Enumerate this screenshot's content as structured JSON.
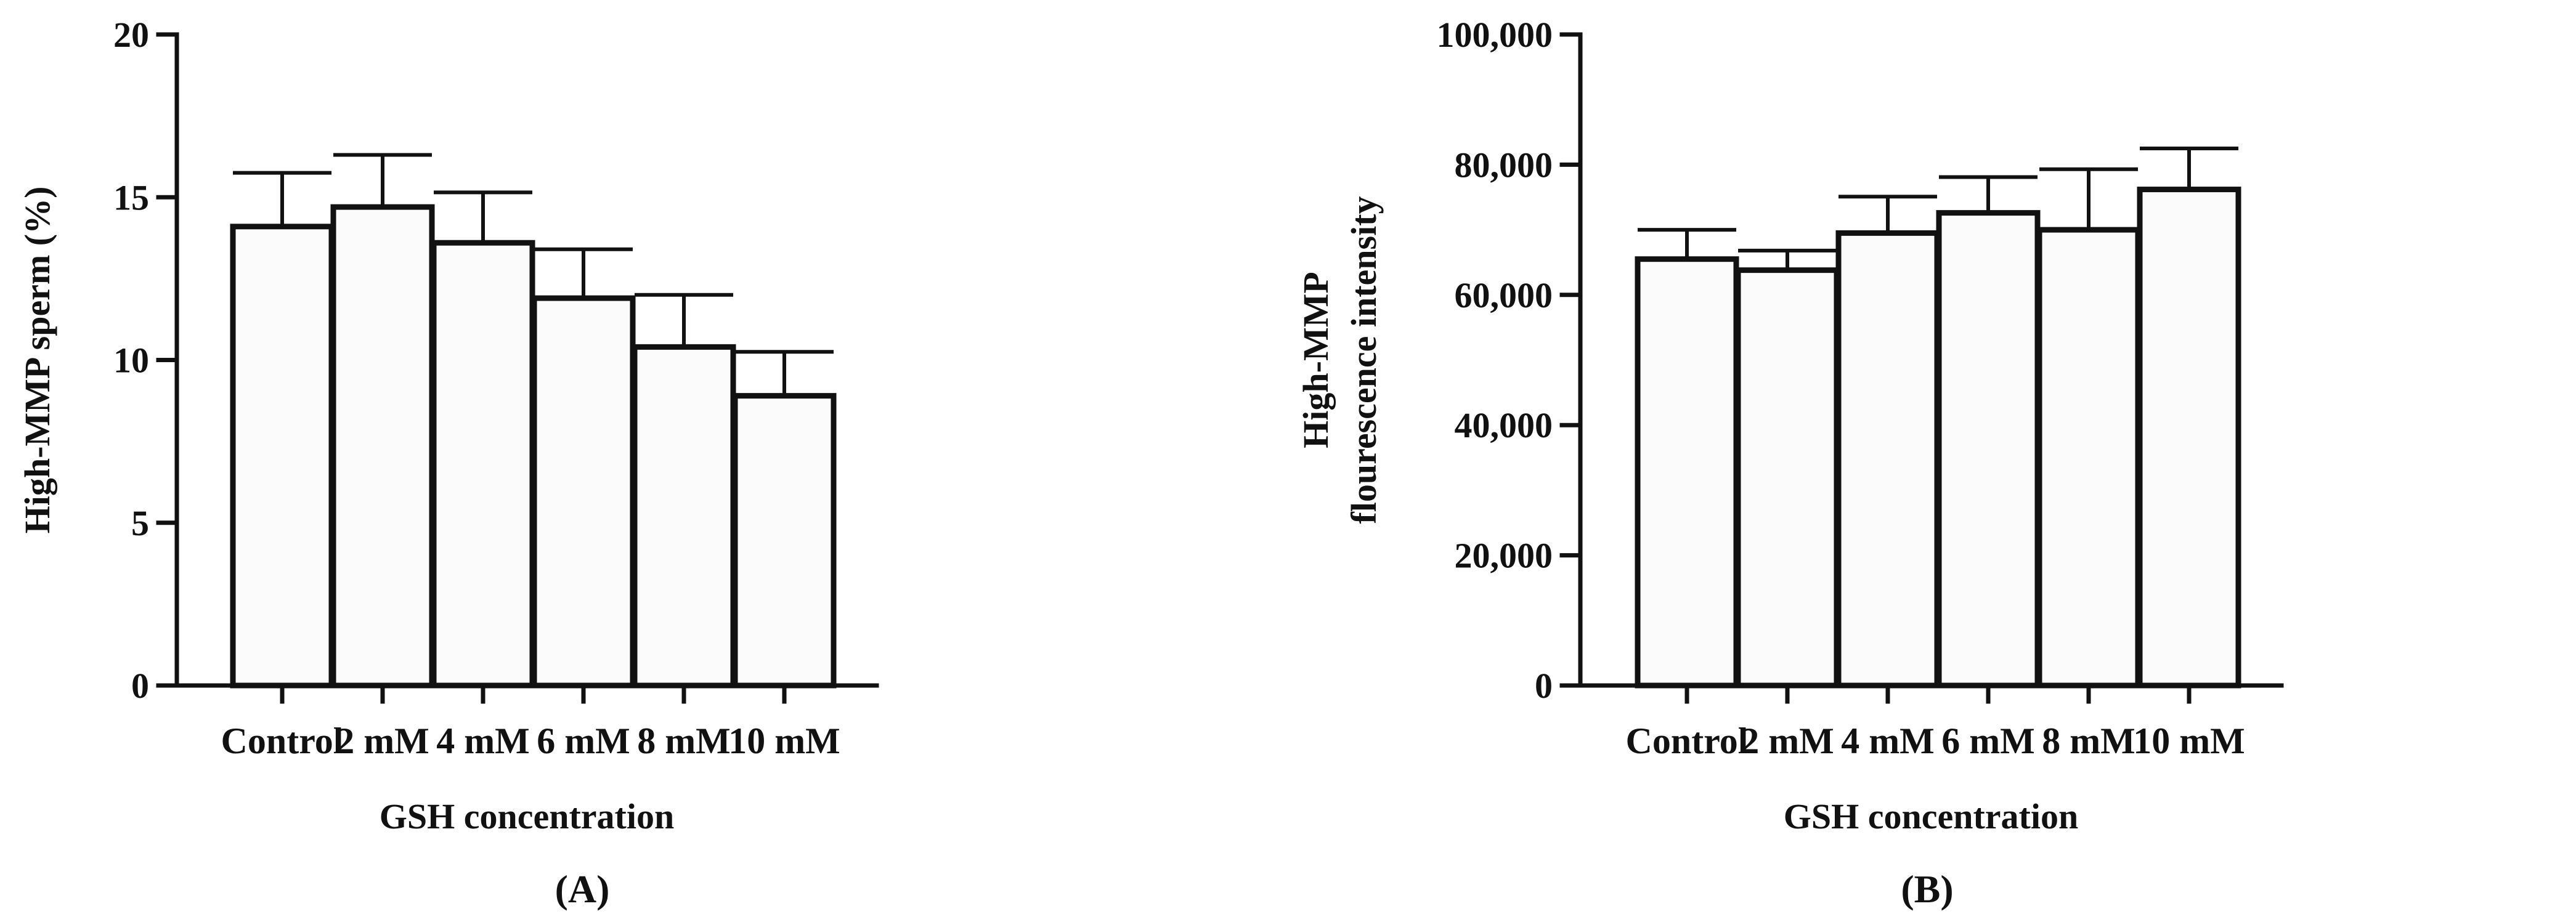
{
  "chart_data": [
    {
      "type": "bar",
      "panel_label": "(A)",
      "categories": [
        "Control",
        "2 mM",
        "4 mM",
        "6 mM",
        "8 mM",
        "10 mM"
      ],
      "values": [
        14.1,
        14.7,
        13.6,
        11.9,
        10.4,
        8.9
      ],
      "error": [
        1.65,
        1.6,
        1.55,
        1.5,
        1.6,
        1.35
      ],
      "xlabel": "GSH concentration",
      "ylabel": [
        "High-MMP sperm (%)"
      ],
      "ylim": [
        0,
        20
      ],
      "yticks": [
        0,
        5,
        10,
        15,
        20
      ],
      "ytick_labels": [
        "0",
        "5",
        "10",
        "15",
        "20"
      ]
    },
    {
      "type": "bar",
      "panel_label": "(B)",
      "categories": [
        "Control",
        "2 mM",
        "4 mM",
        "6 mM",
        "8 mM",
        "10 mM"
      ],
      "values": [
        65500,
        63800,
        69500,
        72600,
        70000,
        76200
      ],
      "error": [
        4500,
        3000,
        5600,
        5500,
        9300,
        6300
      ],
      "xlabel": "GSH concentration",
      "ylabel": [
        "High-MMP",
        "flourescence intensity"
      ],
      "ylim": [
        0,
        100000
      ],
      "yticks": [
        0,
        20000,
        40000,
        60000,
        80000,
        100000
      ],
      "ytick_labels": [
        "0",
        "20,000",
        "40,000",
        "60,000",
        "80,000",
        "100,000"
      ]
    }
  ]
}
